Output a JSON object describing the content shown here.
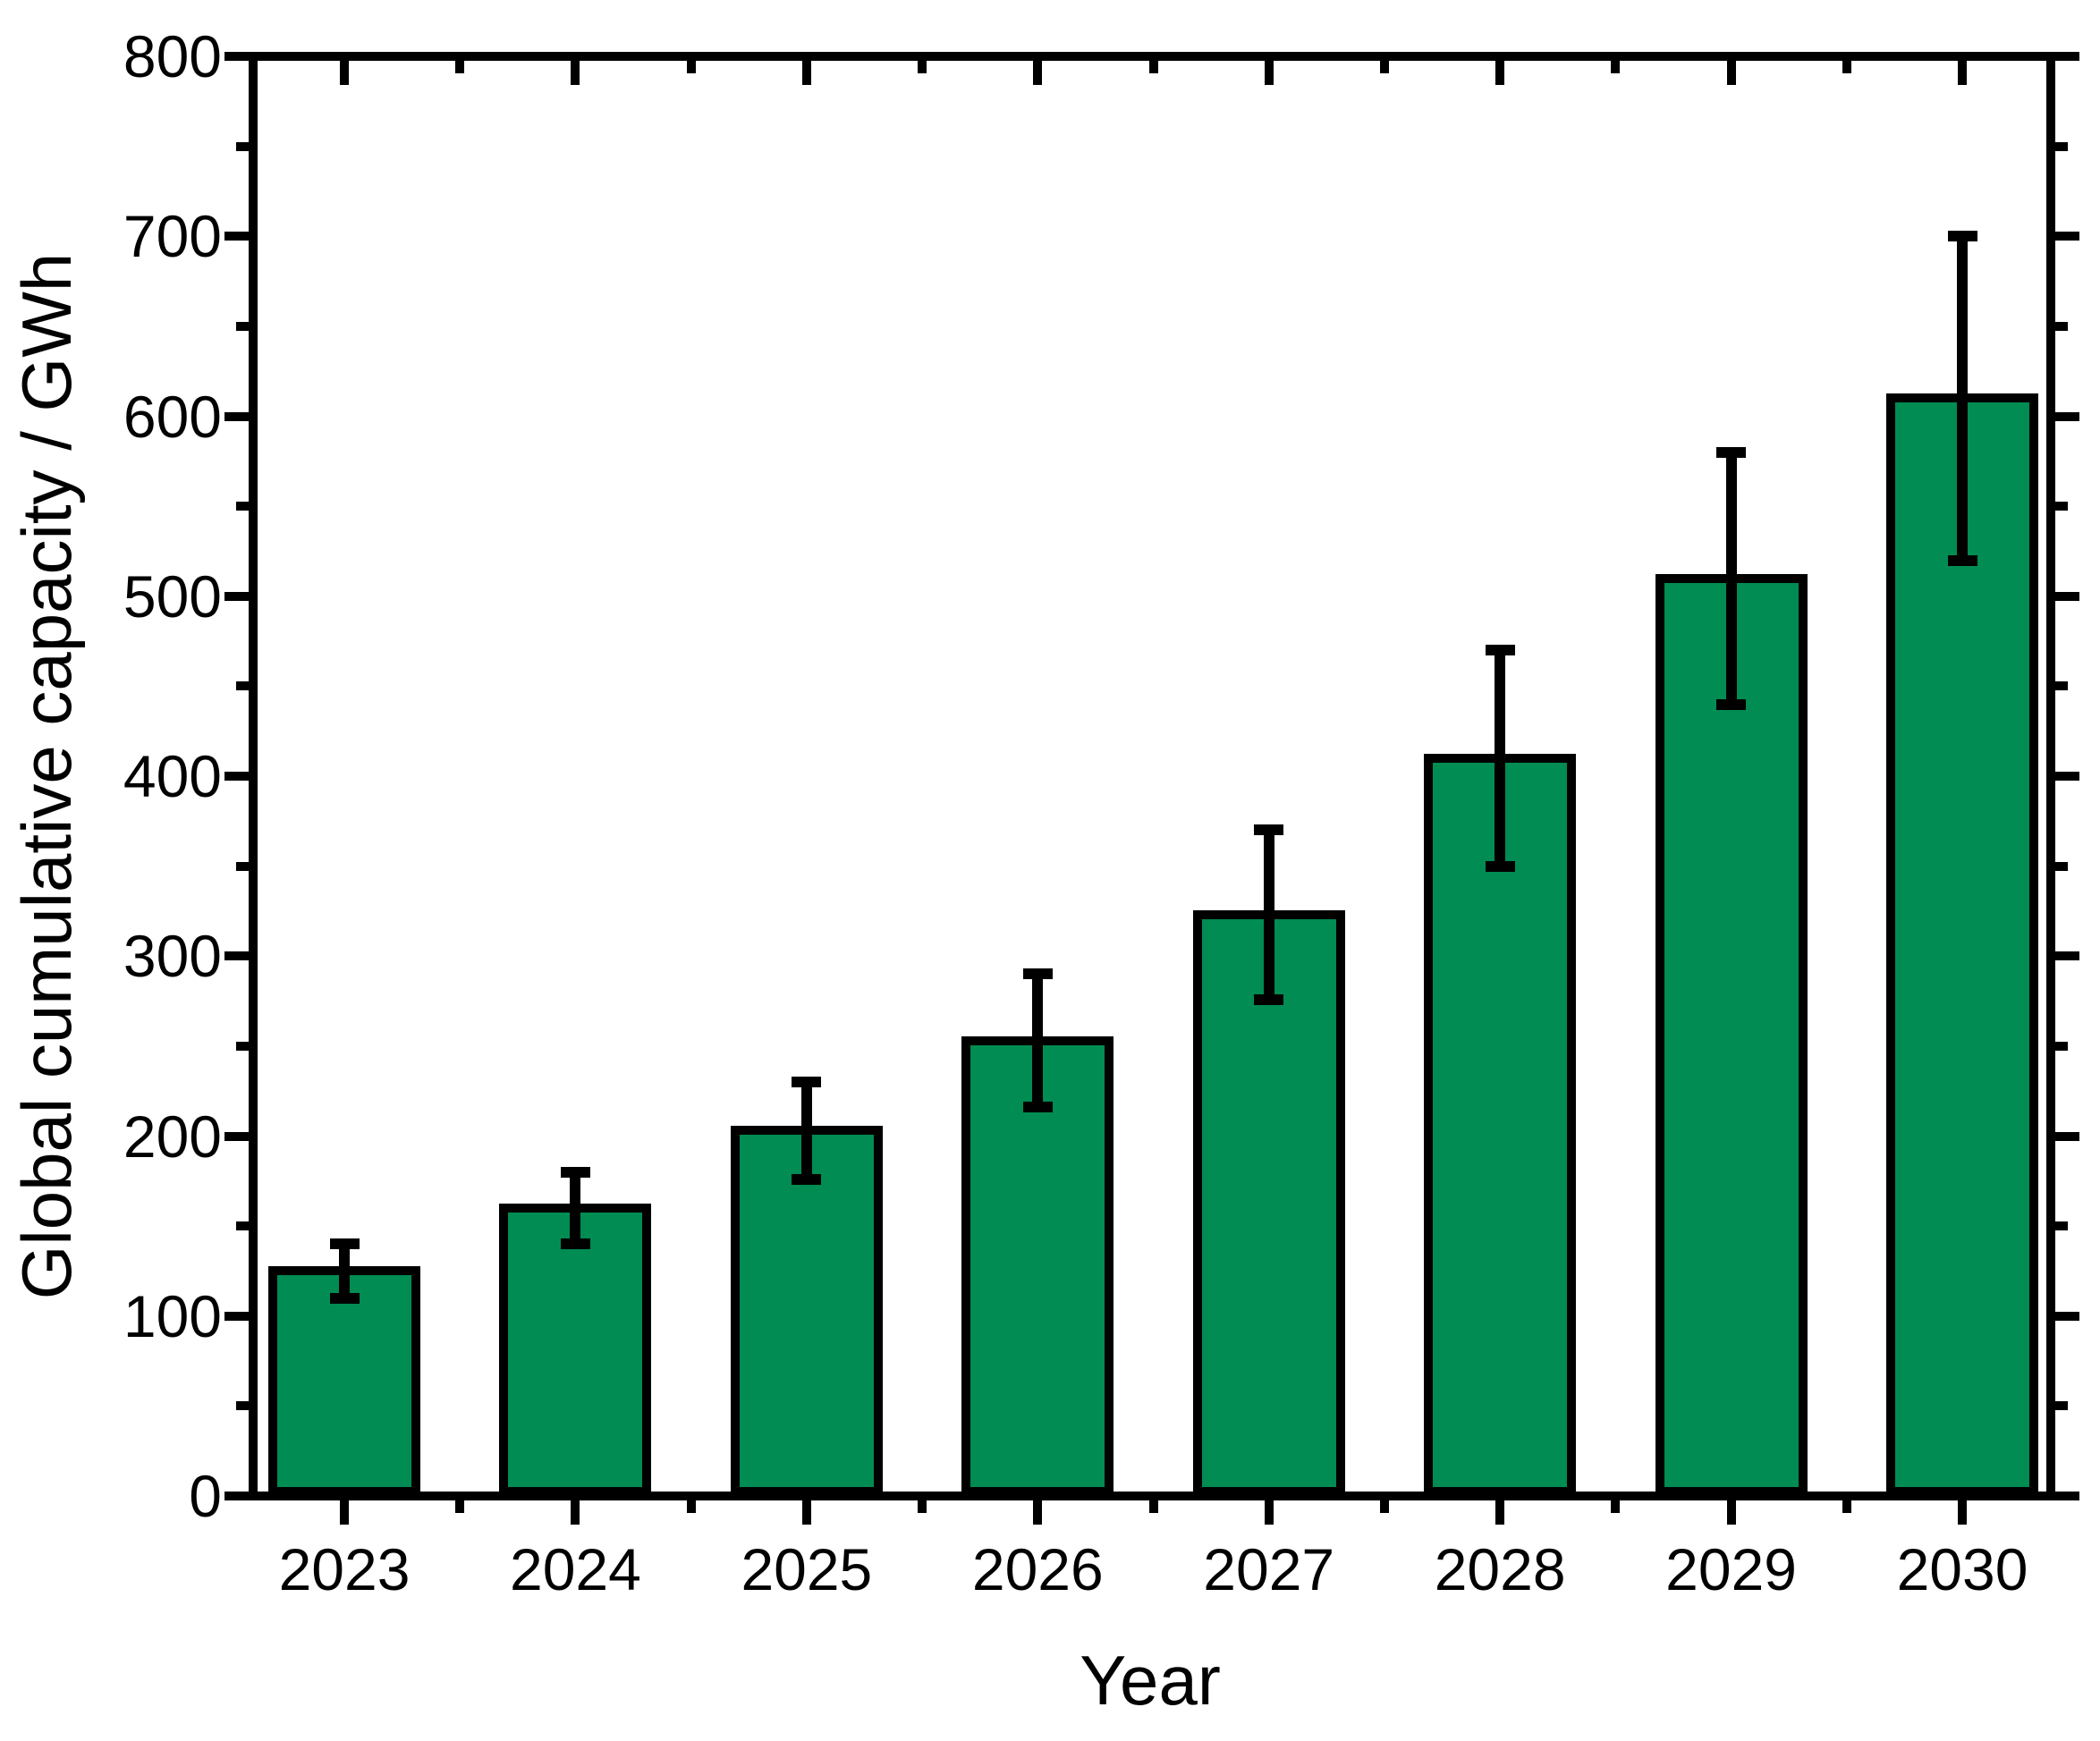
{
  "chart_data": {
    "type": "bar",
    "title": "",
    "xlabel": "Year",
    "ylabel": "Global cumulative capacity / GWh",
    "categories": [
      "2023",
      "2024",
      "2025",
      "2026",
      "2027",
      "2028",
      "2029",
      "2030"
    ],
    "values": [
      125,
      160,
      203,
      253,
      323,
      410,
      510,
      610
    ],
    "error_plus": [
      15,
      20,
      27,
      37,
      47,
      60,
      70,
      90
    ],
    "error_minus": [
      15,
      20,
      27,
      37,
      47,
      60,
      70,
      90
    ],
    "error_ranges": [
      [
        110,
        140
      ],
      [
        140,
        180
      ],
      [
        176,
        230
      ],
      [
        216,
        290
      ],
      [
        276,
        370
      ],
      [
        350,
        470
      ],
      [
        440,
        580
      ],
      [
        520,
        700
      ]
    ],
    "ylim": [
      0,
      800
    ],
    "y_major_step": 100,
    "y_minor_step": 50,
    "y_tick_labels": [
      "0",
      "100",
      "200",
      "300",
      "400",
      "500",
      "600",
      "700",
      "800"
    ],
    "grid": "off",
    "legend": "none",
    "colors": {
      "bar_fill": "#008C52",
      "bar_border": "#000000",
      "axis": "#000000",
      "error_bar": "#000000",
      "background": "#FFFFFF"
    }
  }
}
